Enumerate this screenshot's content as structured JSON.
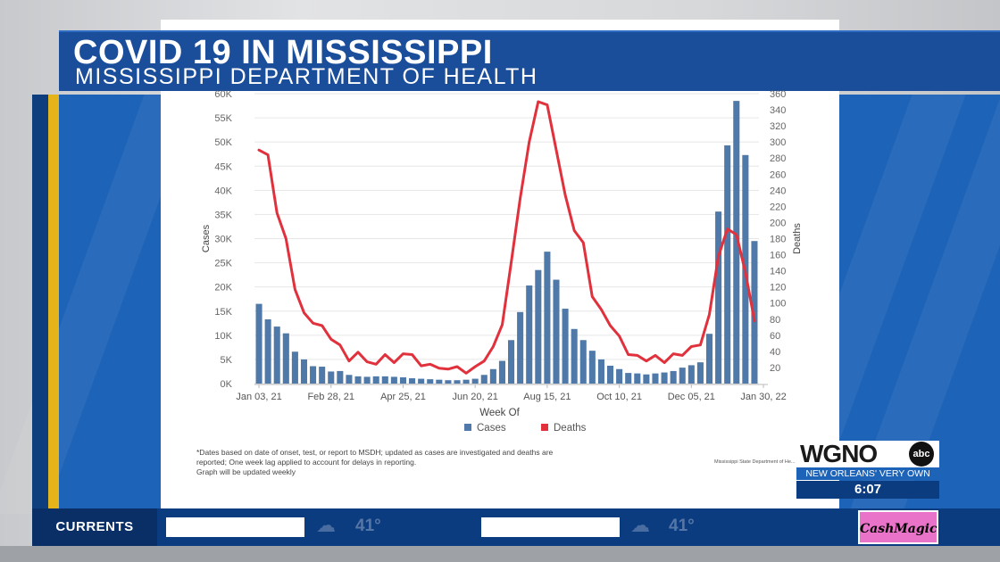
{
  "banner": {
    "title": "COVID 19 IN MISSISSIPPI",
    "subtitle": "MISSISSIPPI DEPARTMENT OF HEALTH"
  },
  "footnote": [
    "*Dates based on date of onset, test, or report to MSDH; updated as cases are investigated and deaths are",
    "reported; One week lag applied to account for delays in reporting.",
    "Graph will be updated weekly"
  ],
  "source": "Mississippi State Department of He...",
  "station": {
    "logo": "WGNO",
    "network": "abc",
    "tagline": "NEW ORLEANS' VERY OWN",
    "time": "6:07"
  },
  "ticker": {
    "label": "CURRENTS",
    "temps": [
      "41°",
      "41°"
    ],
    "weather_icon": "cloud-icon",
    "sponsor": "CashMagic"
  },
  "colors": {
    "cases": "#4f79a8",
    "deaths": "#e0313c",
    "banner": "#1a4d9a",
    "panel": "#1d63b7",
    "accent": "#e5b41b"
  },
  "chart_data": {
    "type": "bar",
    "xlabel": "Week Of",
    "ylabel": "Cases",
    "y2label": "Deaths",
    "ylim": [
      0,
      60000
    ],
    "y2lim": [
      0,
      360
    ],
    "y_ticks": [
      "0K",
      "5K",
      "10K",
      "15K",
      "20K",
      "25K",
      "30K",
      "35K",
      "40K",
      "45K",
      "50K",
      "55K",
      "60K"
    ],
    "y2_ticks": [
      "20",
      "40",
      "60",
      "80",
      "100",
      "120",
      "140",
      "160",
      "180",
      "200",
      "220",
      "240",
      "260",
      "280",
      "300",
      "320",
      "340",
      "360"
    ],
    "x_tick_labels": [
      {
        "index": 0,
        "label": "Jan 03, 21"
      },
      {
        "index": 8,
        "label": "Feb 28, 21"
      },
      {
        "index": 16,
        "label": "Apr 25, 21"
      },
      {
        "index": 24,
        "label": "Jun 20, 21"
      },
      {
        "index": 32,
        "label": "Aug 15, 21"
      },
      {
        "index": 40,
        "label": "Oct 10, 21"
      },
      {
        "index": 48,
        "label": "Dec 05, 21"
      },
      {
        "index": 56,
        "label": "Jan 30, 22"
      }
    ],
    "legend": [
      "Cases",
      "Deaths"
    ],
    "legend_position": "bottom",
    "grid": true,
    "series": [
      {
        "name": "Cases",
        "type": "bar",
        "axis": "left",
        "values": [
          16500,
          13300,
          11800,
          10400,
          6600,
          5000,
          3600,
          3500,
          2500,
          2600,
          1800,
          1500,
          1400,
          1500,
          1500,
          1400,
          1300,
          1100,
          1000,
          900,
          800,
          700,
          700,
          800,
          1000,
          1800,
          3000,
          4700,
          9000,
          14800,
          20300,
          23500,
          27300,
          21500,
          15500,
          11300,
          9000,
          6800,
          5000,
          3700,
          3000,
          2200,
          2100,
          1900,
          2100,
          2300,
          2600,
          3300,
          3800,
          4400,
          10300,
          35600,
          49300,
          58500,
          47300,
          29500
        ]
      },
      {
        "name": "Deaths",
        "type": "line",
        "axis": "right",
        "values": [
          290,
          284,
          212,
          180,
          117,
          88,
          75,
          72,
          55,
          48,
          28,
          39,
          27,
          24,
          36,
          26,
          37,
          36,
          22,
          24,
          19,
          18,
          21,
          13,
          21,
          28,
          46,
          73,
          150,
          230,
          300,
          350,
          346,
          290,
          234,
          190,
          175,
          108,
          92,
          72,
          59,
          36,
          35,
          28,
          35,
          26,
          37,
          35,
          46,
          48,
          86,
          158,
          192,
          185,
          138,
          78
        ]
      }
    ]
  }
}
